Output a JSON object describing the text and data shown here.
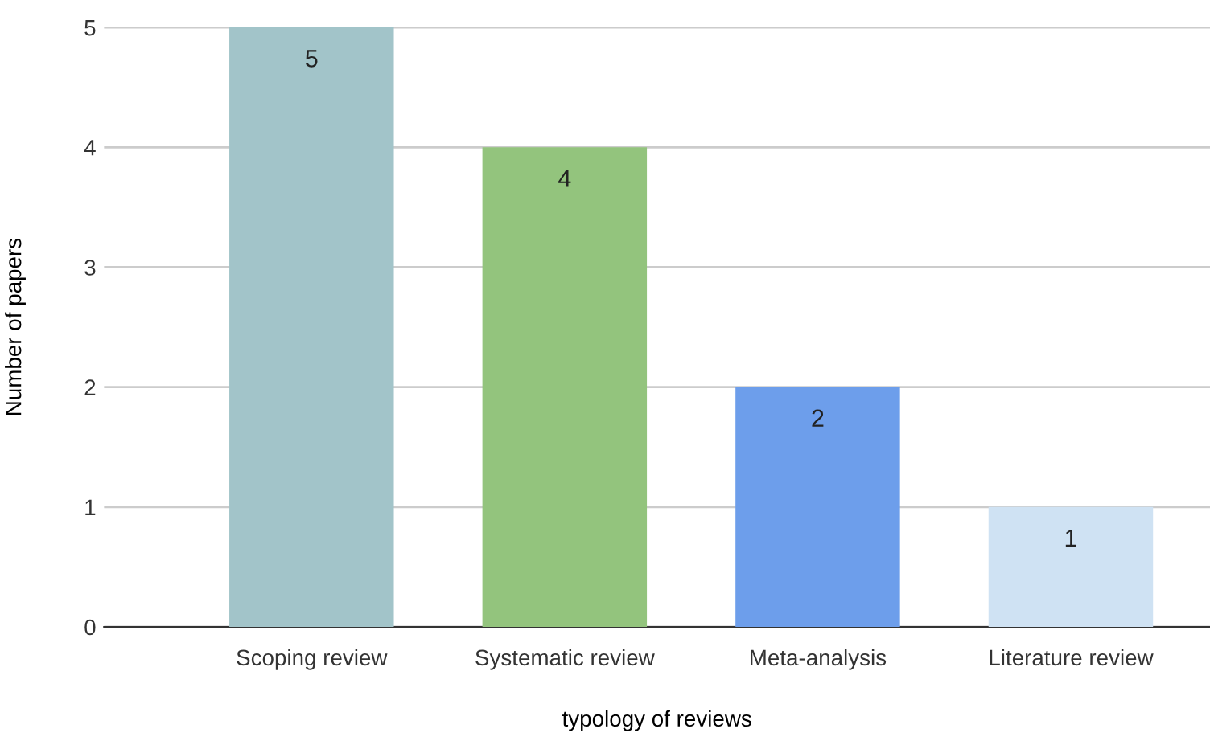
{
  "chart_data": {
    "type": "bar",
    "categories": [
      "Scoping review",
      "Systematic review",
      "Meta-analysis",
      "Literature review"
    ],
    "values": [
      5,
      4,
      2,
      1
    ],
    "colors": [
      "#a2c4c9",
      "#93c47d",
      "#6d9eeb",
      "#cfe2f3"
    ],
    "xlabel": "typology of reviews",
    "ylabel": "Number of papers",
    "ylim": [
      0,
      5
    ],
    "yticks": [
      0,
      1,
      2,
      3,
      4,
      5
    ],
    "grid": "y",
    "data_labels": true,
    "legend": false
  }
}
